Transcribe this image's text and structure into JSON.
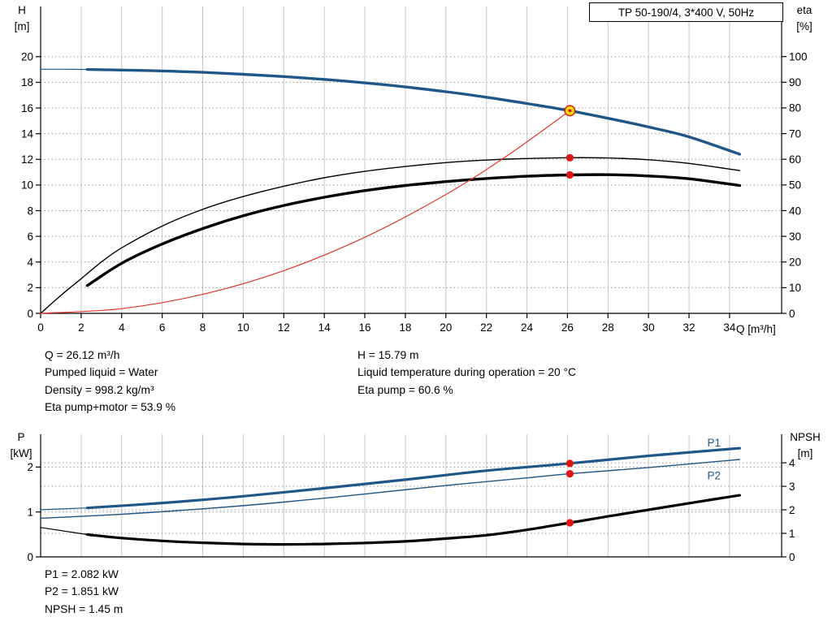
{
  "title_box": "TP 50-190/4, 3*400 V, 50Hz",
  "axis_labels": {
    "h": "H",
    "h_unit": "[m]",
    "eta": "eta",
    "eta_unit": "[%]",
    "q": "Q [m³/h]",
    "p": "P",
    "p_unit": "[kW]",
    "npsh": "NPSH",
    "npsh_unit": "[m]"
  },
  "top_info": {
    "col1": [
      "Q = 26.12 m³/h",
      "Pumped liquid = Water",
      "Density = 998.2 kg/m³",
      "Eta pump+motor = 53.9 %"
    ],
    "col2": [
      "H = 15.79 m",
      "Liquid temperature during operation = 20 °C",
      "Eta pump = 60.6 %"
    ]
  },
  "bottom_info": [
    "P1 = 2.082 kW",
    "P2 = 1.851 kW",
    "NPSH = 1.45 m"
  ],
  "colors": {
    "curve_blue": "#1f5788",
    "curve_black": "#000000",
    "system_red": "#e0392b",
    "marker_red": "#e01410",
    "marker_yellow": "#ffe20a",
    "grid": "#c9c9c9",
    "grid_dot": "#9a9a9a",
    "axis": "#000000"
  },
  "chart_data": [
    {
      "type": "line",
      "name": "qh-eta-performance",
      "title": "TP 50-190/4, 3*400 V, 50Hz",
      "xlabel": "Q [m³/h]",
      "ylabel_left": "H [m]",
      "ylabel_right": "eta [%]",
      "grid": true,
      "legend": "none",
      "xlim": [
        0,
        36.57
      ],
      "x_ticks": [
        0,
        2,
        4,
        6,
        8,
        10,
        12,
        14,
        16,
        18,
        20,
        22,
        24,
        26,
        28,
        30,
        32,
        34
      ],
      "ylim_left": [
        0,
        23.91
      ],
      "y_ticks_left": [
        0,
        2,
        4,
        6,
        8,
        10,
        12,
        14,
        16,
        18,
        20
      ],
      "ylim_right": [
        0,
        119.5
      ],
      "y_ticks_right": [
        0,
        10,
        20,
        30,
        40,
        50,
        60,
        70,
        80,
        90,
        100
      ],
      "series": [
        {
          "name": "head-thin",
          "axis": "left",
          "color": "curve_blue",
          "width": 1.2,
          "points": [
            [
              0,
              19.02
            ],
            [
              1.2,
              19.02
            ],
            [
              2.3,
              19.0
            ]
          ]
        },
        {
          "name": "head",
          "axis": "left",
          "color": "curve_blue",
          "width": 3.4,
          "points": [
            [
              2.3,
              19.0
            ],
            [
              4,
              18.96
            ],
            [
              6,
              18.89
            ],
            [
              8,
              18.78
            ],
            [
              10,
              18.63
            ],
            [
              12,
              18.45
            ],
            [
              14,
              18.23
            ],
            [
              16,
              17.96
            ],
            [
              18,
              17.64
            ],
            [
              20,
              17.27
            ],
            [
              22,
              16.84
            ],
            [
              24,
              16.35
            ],
            [
              26.12,
              15.79
            ],
            [
              28,
              15.2
            ],
            [
              30,
              14.52
            ],
            [
              32,
              13.75
            ],
            [
              34.5,
              12.4
            ]
          ]
        },
        {
          "name": "eta-pump",
          "axis": "right",
          "color": "curve_black",
          "width": 1.4,
          "points": [
            [
              0,
              0
            ],
            [
              1,
              7
            ],
            [
              2,
              13.5
            ],
            [
              3,
              20
            ],
            [
              4,
              25.5
            ],
            [
              6,
              34
            ],
            [
              8,
              40.5
            ],
            [
              10,
              45.5
            ],
            [
              12,
              49.5
            ],
            [
              14,
              52.8
            ],
            [
              16,
              55.3
            ],
            [
              18,
              57.2
            ],
            [
              20,
              58.7
            ],
            [
              22,
              59.7
            ],
            [
              24,
              60.3
            ],
            [
              26.12,
              60.6
            ],
            [
              28,
              60.5
            ],
            [
              30,
              59.8
            ],
            [
              32,
              58.4
            ],
            [
              34.5,
              55.6
            ]
          ]
        },
        {
          "name": "eta-pump-motor",
          "axis": "right",
          "color": "curve_black",
          "width": 3.4,
          "points": [
            [
              2.3,
              10.8
            ],
            [
              4,
              19.5
            ],
            [
              6,
              27
            ],
            [
              8,
              33
            ],
            [
              10,
              38
            ],
            [
              12,
              42
            ],
            [
              14,
              45.2
            ],
            [
              16,
              47.8
            ],
            [
              18,
              49.8
            ],
            [
              20,
              51.3
            ],
            [
              22,
              52.5
            ],
            [
              24,
              53.4
            ],
            [
              26.12,
              53.9
            ],
            [
              28,
              54.0
            ],
            [
              30,
              53.5
            ],
            [
              32,
              52.4
            ],
            [
              34.5,
              49.8
            ]
          ]
        },
        {
          "name": "system-curve",
          "axis": "left",
          "color": "system_red",
          "width": 1.2,
          "points": [
            [
              0,
              0
            ],
            [
              4,
              0.37
            ],
            [
              8,
              1.48
            ],
            [
              12,
              3.33
            ],
            [
              16,
              5.93
            ],
            [
              20,
              9.26
            ],
            [
              23,
              12.25
            ],
            [
              26.12,
              15.79
            ]
          ]
        }
      ],
      "markers": [
        {
          "type": "dot",
          "x": 26.12,
          "y": 60.6,
          "axis": "right"
        },
        {
          "type": "dot",
          "x": 26.12,
          "y": 53.9,
          "axis": "right"
        },
        {
          "type": "duty",
          "x": 26.12,
          "y": 15.79,
          "axis": "left"
        }
      ],
      "labels": []
    },
    {
      "type": "line",
      "name": "power-npsh",
      "title": "",
      "xlabel": "",
      "ylabel_left": "P [kW]",
      "ylabel_right": "NPSH [m]",
      "grid": true,
      "legend": "inline-labels",
      "xlim": [
        0,
        36.57
      ],
      "x_ticks": [
        0,
        2,
        4,
        6,
        8,
        10,
        12,
        14,
        16,
        18,
        20,
        22,
        24,
        26,
        28,
        30,
        32,
        34
      ],
      "ylim_left": [
        0,
        2.73
      ],
      "y_ticks_left": [
        0,
        1,
        2
      ],
      "ylim_right": [
        0,
        5.21
      ],
      "y_ticks_right": [
        0,
        1,
        2,
        3,
        4
      ],
      "series": [
        {
          "name": "p1-thin",
          "axis": "left",
          "color": "curve_blue",
          "width": 1.2,
          "points": [
            [
              0,
              1.05
            ],
            [
              2.3,
              1.09
            ]
          ]
        },
        {
          "name": "p1",
          "axis": "left",
          "color": "curve_blue",
          "width": 3.2,
          "points": [
            [
              2.3,
              1.09
            ],
            [
              6,
              1.2
            ],
            [
              10,
              1.35
            ],
            [
              14,
              1.53
            ],
            [
              18,
              1.72
            ],
            [
              22,
              1.92
            ],
            [
              26.12,
              2.082
            ],
            [
              30,
              2.25
            ],
            [
              34.5,
              2.42
            ]
          ]
        },
        {
          "name": "p2",
          "axis": "left",
          "color": "curve_blue",
          "width": 1.4,
          "points": [
            [
              0,
              0.86
            ],
            [
              4,
              0.95
            ],
            [
              8,
              1.07
            ],
            [
              12,
              1.22
            ],
            [
              16,
              1.4
            ],
            [
              20,
              1.59
            ],
            [
              24,
              1.76
            ],
            [
              26.12,
              1.851
            ],
            [
              30,
              1.99
            ],
            [
              34.5,
              2.17
            ]
          ]
        },
        {
          "name": "npsh-thin",
          "axis": "right",
          "color": "curve_black",
          "width": 1.2,
          "points": [
            [
              0,
              1.25
            ],
            [
              2.3,
              0.95
            ]
          ]
        },
        {
          "name": "npsh",
          "axis": "right",
          "color": "curve_black",
          "width": 3.2,
          "points": [
            [
              2.3,
              0.95
            ],
            [
              4,
              0.8
            ],
            [
              6,
              0.68
            ],
            [
              8,
              0.6
            ],
            [
              10,
              0.55
            ],
            [
              12,
              0.53
            ],
            [
              14,
              0.55
            ],
            [
              16,
              0.59
            ],
            [
              18,
              0.66
            ],
            [
              20,
              0.78
            ],
            [
              22,
              0.92
            ],
            [
              24,
              1.15
            ],
            [
              26.12,
              1.45
            ],
            [
              28,
              1.72
            ],
            [
              30,
              2.0
            ],
            [
              32,
              2.28
            ],
            [
              34.5,
              2.62
            ]
          ]
        }
      ],
      "markers": [
        {
          "type": "dot",
          "x": 26.12,
          "y": 2.082,
          "axis": "left"
        },
        {
          "type": "dot",
          "x": 26.12,
          "y": 1.851,
          "axis": "left"
        },
        {
          "type": "dot",
          "x": 26.12,
          "y": 1.45,
          "axis": "right"
        }
      ],
      "labels": [
        {
          "text": "P1",
          "x": 32.9,
          "y": 2.46,
          "axis": "left",
          "color": "curve_blue"
        },
        {
          "text": "P2",
          "x": 32.9,
          "y": 1.73,
          "axis": "left",
          "color": "curve_blue"
        }
      ]
    }
  ]
}
